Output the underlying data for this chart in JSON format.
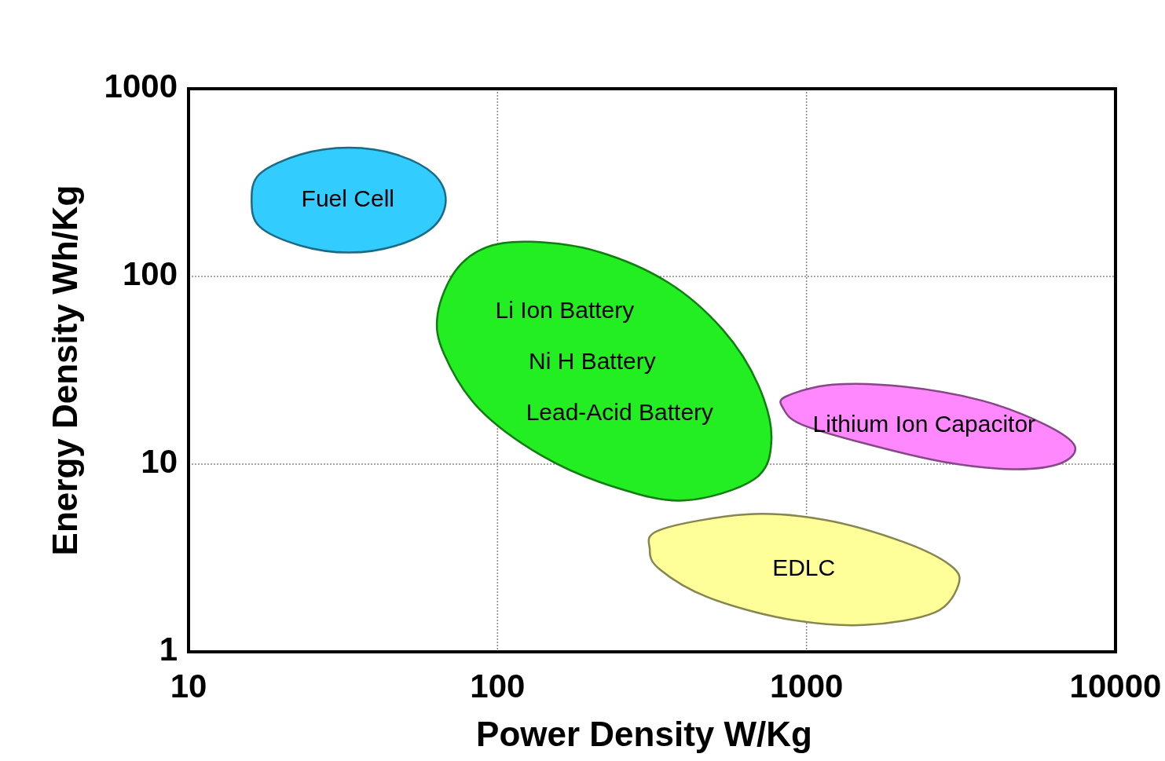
{
  "chart_data": {
    "type": "area",
    "xlabel": "Power Density  W/Kg",
    "ylabel": "Energy Density  Wh/Kg",
    "log": "xy",
    "grid": true,
    "xlim": [
      10,
      10000
    ],
    "xticks": [
      10,
      100,
      1000,
      10000
    ],
    "ylim": [
      1,
      1000
    ],
    "yticks": [
      1,
      10,
      100,
      1000
    ],
    "series": [
      {
        "name": "Fuel Cell",
        "color": "#33ccff",
        "x": [
          68,
          62,
          47,
          33,
          23,
          17,
          16,
          17,
          23,
          33,
          47,
          62
        ],
        "values": [
          255,
          352,
          446,
          485,
          446,
          352,
          255,
          184,
          146,
          134,
          146,
          184
        ]
      },
      {
        "color": "#22ee22",
        "x": [
          128,
          210,
          356,
          536,
          697,
          770,
          677,
          400,
          236,
          139,
          87,
          67,
          64,
          73,
          92
        ],
        "values": [
          153,
          136,
          93,
          52,
          26.5,
          13.5,
          8.3,
          6.4,
          7.6,
          11.1,
          19.8,
          38.9,
          63,
          107,
          143
        ]
      },
      {
        "name": "Lithium Ion Capacitor",
        "color": "#ff88ff",
        "x": [
          856,
          1216,
          2060,
          3700,
          5900,
          7380,
          6640,
          4670,
          2760,
          1540,
          962,
          841
        ],
        "values": [
          22.9,
          26.5,
          25.9,
          21.8,
          16.3,
          12.5,
          10.1,
          9.4,
          10.3,
          12.9,
          16.3,
          19.8
        ]
      },
      {
        "name": "EDLC",
        "color": "#ffff99",
        "x": [
          335,
          639,
          1146,
          2060,
          2930,
          3100,
          2600,
          1540,
          856,
          477,
          335,
          311
        ],
        "values": [
          4.46,
          5.4,
          5.05,
          3.85,
          2.88,
          2.27,
          1.62,
          1.39,
          1.5,
          1.96,
          2.75,
          3.5
        ]
      }
    ],
    "annotations": [
      "Li Ion Battery",
      "Ni H Battery",
      "Lead-Acid Battery"
    ]
  }
}
